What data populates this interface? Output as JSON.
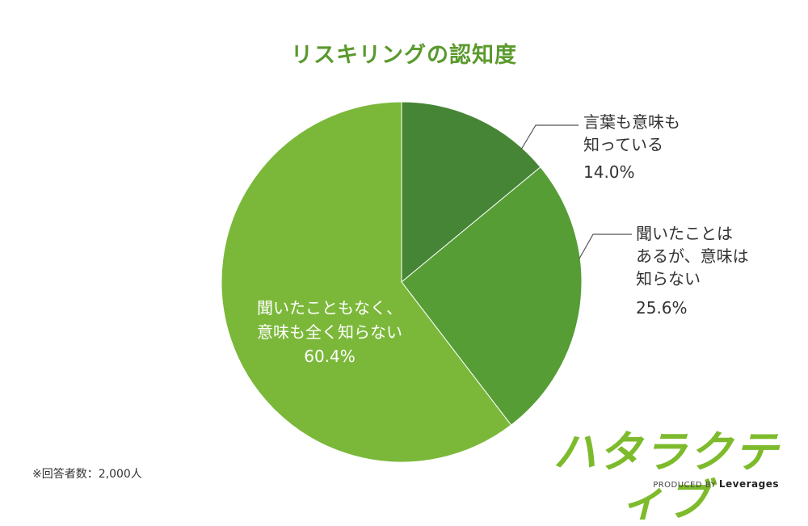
{
  "chart_data": {
    "type": "pie",
    "title": "リスキリングの認知度",
    "start_angle_deg": 0,
    "direction": "clockwise",
    "slices": [
      {
        "label_lines": [
          "言葉も意味も",
          "知っている"
        ],
        "value": 14.0,
        "value_label": "14.0%",
        "color": "#468535"
      },
      {
        "label_lines": [
          "聞いたことは",
          "あるが、意味は",
          "知らない"
        ],
        "value": 25.6,
        "value_label": "25.6%",
        "color": "#569d35"
      },
      {
        "label_lines": [
          "聞いたこともなく、",
          "意味も全く知らない"
        ],
        "value": 60.4,
        "value_label": "60.4%",
        "color": "#7bb83a"
      }
    ]
  },
  "footnote": "※回答者数：2,000人",
  "brand": {
    "name": "ハタラクティブ",
    "produced_by": "PRODUCED BY",
    "company": "Leverages"
  }
}
